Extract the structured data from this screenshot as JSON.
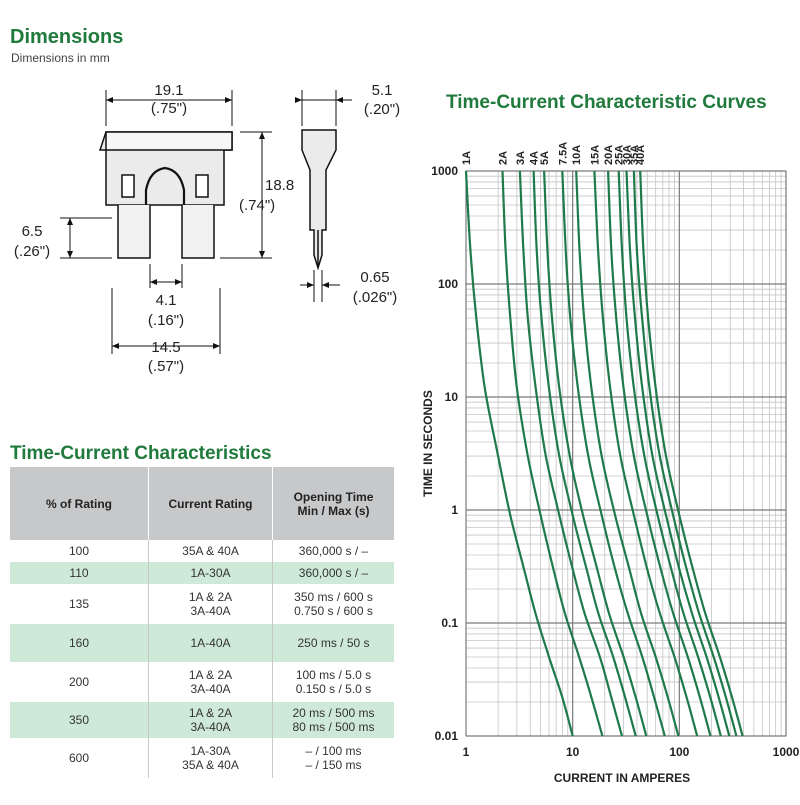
{
  "dimensions": {
    "title": "Dimensions",
    "subtitle": "Dimensions in mm",
    "labels": {
      "width_mm": "19.1",
      "width_in": "(.75\")",
      "thick_mm": "5.1",
      "thick_in": "(.20\")",
      "height_mm": "18.8",
      "height_in": "(.74\")",
      "terminal_mm": "6.5",
      "terminal_in": "(.26\")",
      "blade_mm": "0.65",
      "blade_in": "(.026\")",
      "gap_mm": "4.1",
      "gap_in": "(.16\")",
      "span_mm": "14.5",
      "span_in": "(.57\")"
    }
  },
  "table": {
    "title": "Time-Current Characteristics",
    "headers": [
      "% of Rating",
      "Current Rating",
      "Opening Time\nMin / Max (s)"
    ],
    "rows": [
      {
        "pct": "100",
        "rating": "35A & 40A",
        "time": "360,000 s / –"
      },
      {
        "pct": "110",
        "rating": "1A-30A",
        "time": "360,000 s / –"
      },
      {
        "pct": "135",
        "rating": "1A & 2A\n3A-40A",
        "time": "350 ms / 600 s\n0.750 s / 600 s"
      },
      {
        "pct": "160",
        "rating": "1A-40A",
        "time": "250 ms / 50 s"
      },
      {
        "pct": "200",
        "rating": "1A & 2A\n3A-40A",
        "time": "100 ms / 5.0 s\n0.150 s / 5.0 s"
      },
      {
        "pct": "350",
        "rating": "1A & 2A\n3A-40A",
        "time": "20 ms / 500 ms\n80 ms / 500 ms"
      },
      {
        "pct": "600",
        "rating": "1A-30A\n35A & 40A",
        "time": "– / 100 ms\n– / 150 ms"
      }
    ],
    "colors": {
      "header_bg": "#c7c8ca",
      "alt_row_bg": "#cfe9d9"
    }
  },
  "chart_data": {
    "type": "line",
    "title": "Time-Current Characteristic Curves",
    "xlabel": "CURRENT IN AMPERES",
    "ylabel": "TIME IN SECONDS",
    "x_scale": "log",
    "y_scale": "log",
    "xlim": [
      1,
      1000
    ],
    "ylim": [
      0.01,
      1000
    ],
    "x_ticks": [
      "1",
      "10",
      "100",
      "1000"
    ],
    "y_ticks": [
      "0.01",
      "0.1",
      "1",
      "10",
      "100",
      "1000"
    ],
    "grid": true,
    "line_color": "#1f7a4a",
    "series": [
      {
        "name": "1A",
        "x": [
          1.0,
          1.1,
          1.25,
          1.5,
          2.0,
          2.6,
          3.5,
          4.5,
          6.0,
          8.0,
          10.0
        ],
        "y": [
          1000,
          200,
          50,
          12,
          3.0,
          0.9,
          0.3,
          0.12,
          0.05,
          0.022,
          0.01
        ]
      },
      {
        "name": "2A",
        "x": [
          2.2,
          2.35,
          2.6,
          3.0,
          3.8,
          5.0,
          6.6,
          8.5,
          11.5,
          15.0,
          19.0
        ],
        "y": [
          1000,
          200,
          50,
          12,
          3.0,
          0.9,
          0.3,
          0.12,
          0.05,
          0.022,
          0.01
        ]
      },
      {
        "name": "3A",
        "x": [
          3.2,
          3.45,
          3.8,
          4.5,
          5.6,
          7.5,
          10.0,
          13.0,
          18.0,
          23.0,
          29.0
        ],
        "y": [
          1000,
          200,
          50,
          12,
          3.0,
          0.9,
          0.3,
          0.12,
          0.05,
          0.022,
          0.01
        ]
      },
      {
        "name": "4A",
        "x": [
          4.3,
          4.6,
          5.1,
          6.0,
          7.5,
          10.0,
          13.5,
          17.5,
          24.0,
          31.0,
          39.0
        ],
        "y": [
          1000,
          200,
          50,
          12,
          3.0,
          0.9,
          0.3,
          0.12,
          0.05,
          0.022,
          0.01
        ]
      },
      {
        "name": "5A",
        "x": [
          5.4,
          5.8,
          6.4,
          7.5,
          9.4,
          12.5,
          17.0,
          22.0,
          30.0,
          39.0,
          49.0
        ],
        "y": [
          1000,
          200,
          50,
          12,
          3.0,
          0.9,
          0.3,
          0.12,
          0.05,
          0.022,
          0.01
        ]
      },
      {
        "name": "7.5A",
        "x": [
          8.0,
          8.6,
          9.5,
          11.2,
          14.0,
          18.7,
          25.0,
          33.0,
          45.0,
          58.0,
          73.0
        ],
        "y": [
          1000,
          200,
          50,
          12,
          3.0,
          0.9,
          0.3,
          0.12,
          0.05,
          0.022,
          0.01
        ]
      },
      {
        "name": "10A",
        "x": [
          10.8,
          11.6,
          12.8,
          15.0,
          18.7,
          25.0,
          34.0,
          44.0,
          60.0,
          78.0,
          98.0
        ],
        "y": [
          1000,
          200,
          50,
          12,
          3.0,
          0.9,
          0.3,
          0.12,
          0.05,
          0.022,
          0.01
        ]
      },
      {
        "name": "15A",
        "x": [
          16.0,
          17.3,
          19.2,
          22.5,
          28.0,
          37.5,
          50.0,
          66.0,
          90.0,
          117.0,
          147.0
        ],
        "y": [
          1000,
          200,
          50,
          12,
          3.0,
          0.9,
          0.3,
          0.12,
          0.05,
          0.022,
          0.01
        ]
      },
      {
        "name": "20A",
        "x": [
          21.5,
          23.0,
          25.6,
          30.0,
          37.5,
          50.0,
          67.0,
          88.0,
          120.0,
          156.0,
          196.0
        ],
        "y": [
          1000,
          200,
          50,
          12,
          3.0,
          0.9,
          0.3,
          0.12,
          0.05,
          0.022,
          0.01
        ]
      },
      {
        "name": "25A",
        "x": [
          27.0,
          29.0,
          32.0,
          37.5,
          47.0,
          62.5,
          84.0,
          110.0,
          150.0,
          195.0,
          245.0
        ],
        "y": [
          1000,
          200,
          50,
          12,
          3.0,
          0.9,
          0.3,
          0.12,
          0.05,
          0.022,
          0.01
        ]
      },
      {
        "name": "30A",
        "x": [
          32.0,
          34.5,
          38.4,
          45.0,
          56.0,
          75.0,
          100.0,
          132.0,
          180.0,
          234.0,
          294.0
        ],
        "y": [
          1000,
          200,
          50,
          12,
          3.0,
          0.9,
          0.3,
          0.12,
          0.05,
          0.022,
          0.01
        ]
      },
      {
        "name": "35A",
        "x": [
          37.5,
          40.0,
          44.8,
          52.5,
          65.6,
          87.5,
          117.0,
          154.0,
          210.0,
          273.0,
          343.0
        ],
        "y": [
          1000,
          200,
          50,
          12,
          3.0,
          0.9,
          0.3,
          0.12,
          0.05,
          0.022,
          0.01
        ]
      },
      {
        "name": "40A",
        "x": [
          43.0,
          46.0,
          51.0,
          60.0,
          75.0,
          100.0,
          134.0,
          176.0,
          240.0,
          312.0,
          392.0
        ],
        "y": [
          1000,
          200,
          50,
          12,
          3.0,
          0.9,
          0.3,
          0.12,
          0.05,
          0.022,
          0.01
        ]
      }
    ]
  }
}
